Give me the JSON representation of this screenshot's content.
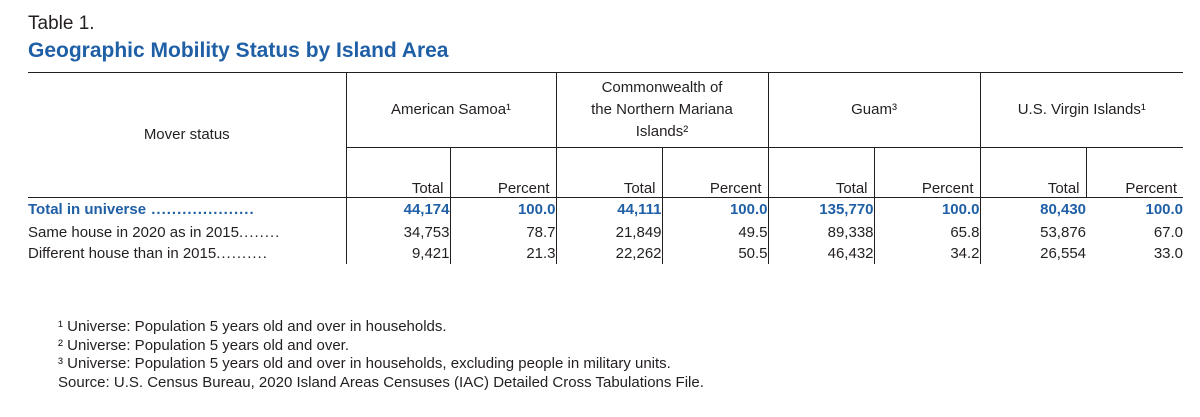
{
  "table_label": "Table 1.",
  "title": "Geographic Mobility Status by Island Area",
  "stub_header": "Mover status",
  "groups": [
    {
      "name": "American Samoa¹"
    },
    {
      "name_lines": [
        "Commonwealth of",
        "the Northern Mariana",
        "Islands²"
      ]
    },
    {
      "name": "Guam³"
    },
    {
      "name": "U.S. Virgin Islands¹"
    }
  ],
  "sub_headers": {
    "total": "Total",
    "percent": "Percent"
  },
  "rows": [
    {
      "label": "Total in universe",
      "dots": " ....................",
      "values": [
        "44,174",
        "100.0",
        "44,111",
        "100.0",
        "135,770",
        "100.0",
        "80,430",
        "100.0"
      ]
    },
    {
      "label": "Same house in 2020 as in 2015",
      "dots": "........",
      "values": [
        "34,753",
        "78.7",
        "21,849",
        "49.5",
        "89,338",
        "65.8",
        "53,876",
        "67.0"
      ]
    },
    {
      "label": "Different house than in 2015",
      "dots": "..........",
      "values": [
        "9,421",
        "21.3",
        "22,262",
        "50.5",
        "46,432",
        "34.2",
        "26,554",
        "33.0"
      ]
    }
  ],
  "notes": [
    "¹ Universe: Population 5 years old and over in households.",
    "² Universe: Population 5 years old and over.",
    "³ Universe: Population 5 years old and over in households, excluding people in military units.",
    "Source: U.S. Census Bureau, 2020 Island Areas Censuses (IAC) Detailed Cross Tabulations File."
  ]
}
